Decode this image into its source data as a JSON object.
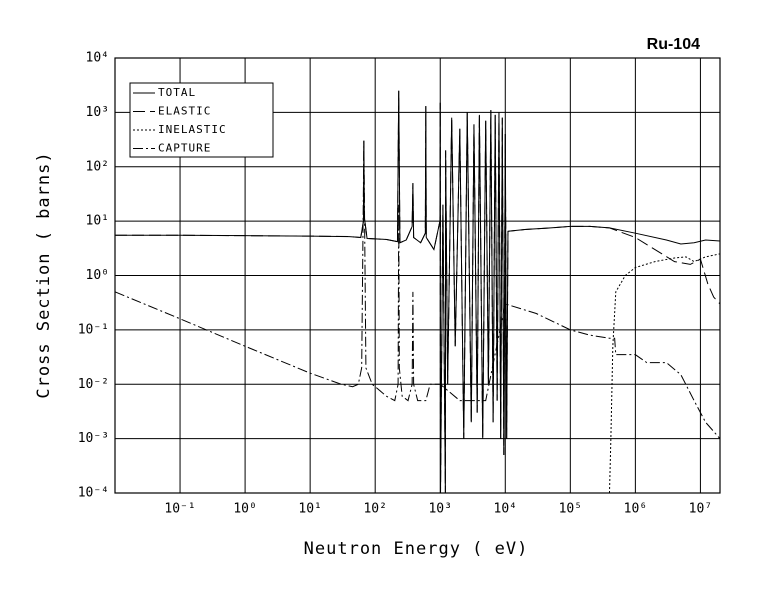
{
  "chart_data": {
    "type": "line",
    "title": "Ru-104",
    "x_label": "Neutron Energy ( eV)",
    "y_label": "Cross Section ( barns)",
    "xscale": "log",
    "yscale": "log",
    "grid": true,
    "legend": "upper left",
    "xlim": [
      0.01,
      20000000
    ],
    "ylim": [
      0.0001,
      10000
    ],
    "xticks": [
      {
        "value": 0.1,
        "label": "10⁻¹"
      },
      {
        "value": 1,
        "label": "10⁰"
      },
      {
        "value": 10,
        "label": "10¹"
      },
      {
        "value": 100,
        "label": "10²"
      },
      {
        "value": 1000,
        "label": "10³"
      },
      {
        "value": 10000,
        "label": "10⁴"
      },
      {
        "value": 100000,
        "label": "10⁵"
      },
      {
        "value": 1000000,
        "label": "10⁶"
      },
      {
        "value": 10000000,
        "label": "10⁷"
      }
    ],
    "yticks": [
      {
        "value": 0.0001,
        "label": "10⁻⁴"
      },
      {
        "value": 0.001,
        "label": "10⁻³"
      },
      {
        "value": 0.01,
        "label": "10⁻²"
      },
      {
        "value": 0.1,
        "label": "10⁻¹"
      },
      {
        "value": 1,
        "label": "10⁰"
      },
      {
        "value": 10,
        "label": "10¹"
      },
      {
        "value": 100,
        "label": "10²"
      },
      {
        "value": 1000,
        "label": "10³"
      },
      {
        "value": 10000,
        "label": "10⁴"
      }
    ],
    "series": [
      {
        "name": "TOTAL",
        "color": "#000000",
        "dash": "solid",
        "x": [
          0.01,
          0.1,
          1,
          10,
          40,
          60,
          66,
          67,
          68,
          75,
          150,
          220,
          230,
          240,
          300,
          370,
          380,
          390,
          500,
          590,
          600,
          610,
          800,
          990,
          1000,
          1010,
          1100,
          1200,
          1210,
          1300,
          1500,
          1700,
          2000,
          2300,
          2600,
          3000,
          3300,
          3700,
          4000,
          4500,
          5000,
          5500,
          6000,
          6500,
          7000,
          7500,
          8000,
          8500,
          9000,
          9500,
          10000,
          10500,
          11000,
          20000,
          50000,
          100000,
          200000,
          400000,
          1000000,
          3000000,
          5000000,
          8000000,
          12000000,
          20000000
        ],
        "values": [
          5.5,
          5.5,
          5.4,
          5.3,
          5.2,
          5,
          10,
          300,
          12,
          4.8,
          4.6,
          4.2,
          2500,
          4,
          4.5,
          8,
          50,
          5,
          4,
          6,
          1300,
          5,
          3,
          10,
          1500,
          0.0001,
          20,
          0.0001,
          200,
          0.01,
          800,
          0.05,
          500,
          0.001,
          1000,
          0.002,
          600,
          0.003,
          900,
          0.001,
          700,
          0.01,
          1100,
          0.002,
          900,
          0.005,
          1000,
          0.001,
          800,
          0.0005,
          400,
          0.001,
          6.5,
          7,
          7.5,
          8,
          8,
          7.5,
          6,
          4.5,
          3.8,
          4,
          4.5,
          4.3
        ]
      },
      {
        "name": "ELASTIC",
        "color": "#000000",
        "dash": "dashed",
        "x": [
          0.01,
          0.1,
          1,
          10,
          40,
          60,
          66,
          67,
          68,
          75,
          150,
          220,
          230,
          240,
          300,
          370,
          380,
          390,
          500,
          590,
          600,
          610,
          800,
          990,
          1000,
          1010,
          1100,
          1200,
          1210,
          1300,
          1500,
          1700,
          2000,
          2300,
          2600,
          3000,
          3300,
          3700,
          4000,
          4500,
          5000,
          5500,
          6000,
          6500,
          7000,
          7500,
          8000,
          8500,
          9000,
          9500,
          10000,
          10500,
          11000,
          20000,
          50000,
          100000,
          200000,
          400000,
          1000000,
          2000000,
          4000000,
          7000000,
          10000000,
          13000000,
          16000000,
          20000000
        ],
        "values": [
          5.5,
          5.5,
          5.4,
          5.3,
          5.2,
          5,
          10,
          300,
          12,
          4.8,
          4.6,
          4.2,
          2500,
          4,
          4.5,
          8,
          50,
          5,
          4,
          6,
          1300,
          5,
          3,
          10,
          1500,
          0.0001,
          20,
          0.0001,
          200,
          0.01,
          800,
          0.05,
          500,
          0.001,
          1000,
          0.002,
          600,
          0.003,
          900,
          0.001,
          700,
          0.01,
          1100,
          0.002,
          900,
          0.005,
          1000,
          0.001,
          800,
          0.0005,
          400,
          0.001,
          6.5,
          7,
          7.5,
          8,
          8,
          7.5,
          5,
          3,
          1.8,
          1.6,
          2,
          0.7,
          0.4,
          0.3
        ]
      },
      {
        "name": "INELASTIC",
        "color": "#000000",
        "dash": "dotted",
        "x": [
          400000,
          420000,
          450000,
          500000,
          700000,
          1000000,
          2000000,
          4000000,
          6000000,
          8000000,
          12000000,
          20000000
        ],
        "values": [
          0.0001,
          0.001,
          0.05,
          0.5,
          1,
          1.4,
          1.8,
          2.1,
          2.2,
          1.8,
          2.2,
          2.5
        ]
      },
      {
        "name": "CAPTURE",
        "color": "#000000",
        "dash": "dashdot",
        "x": [
          0.01,
          0.1,
          1,
          10,
          30,
          45,
          55,
          62,
          67,
          72,
          90,
          150,
          200,
          225,
          230,
          235,
          260,
          320,
          370,
          380,
          390,
          450,
          600,
          700,
          1000,
          2000,
          5000,
          10000,
          30000,
          100000,
          200000,
          400000,
          480000,
          500000,
          1000000,
          1500000,
          3000000,
          5000000,
          8000000,
          12000000,
          20000000
        ],
        "values": [
          0.5,
          0.16,
          0.05,
          0.016,
          0.01,
          0.009,
          0.01,
          0.02,
          300,
          0.02,
          0.01,
          0.006,
          0.005,
          0.01,
          20,
          0.02,
          0.006,
          0.005,
          0.01,
          0.5,
          0.01,
          0.005,
          0.005,
          0.01,
          0.01,
          0.005,
          0.005,
          0.3,
          0.2,
          0.1,
          0.08,
          0.07,
          0.07,
          0.035,
          0.035,
          0.025,
          0.025,
          0.015,
          0.005,
          0.002,
          0.001
        ]
      }
    ]
  }
}
